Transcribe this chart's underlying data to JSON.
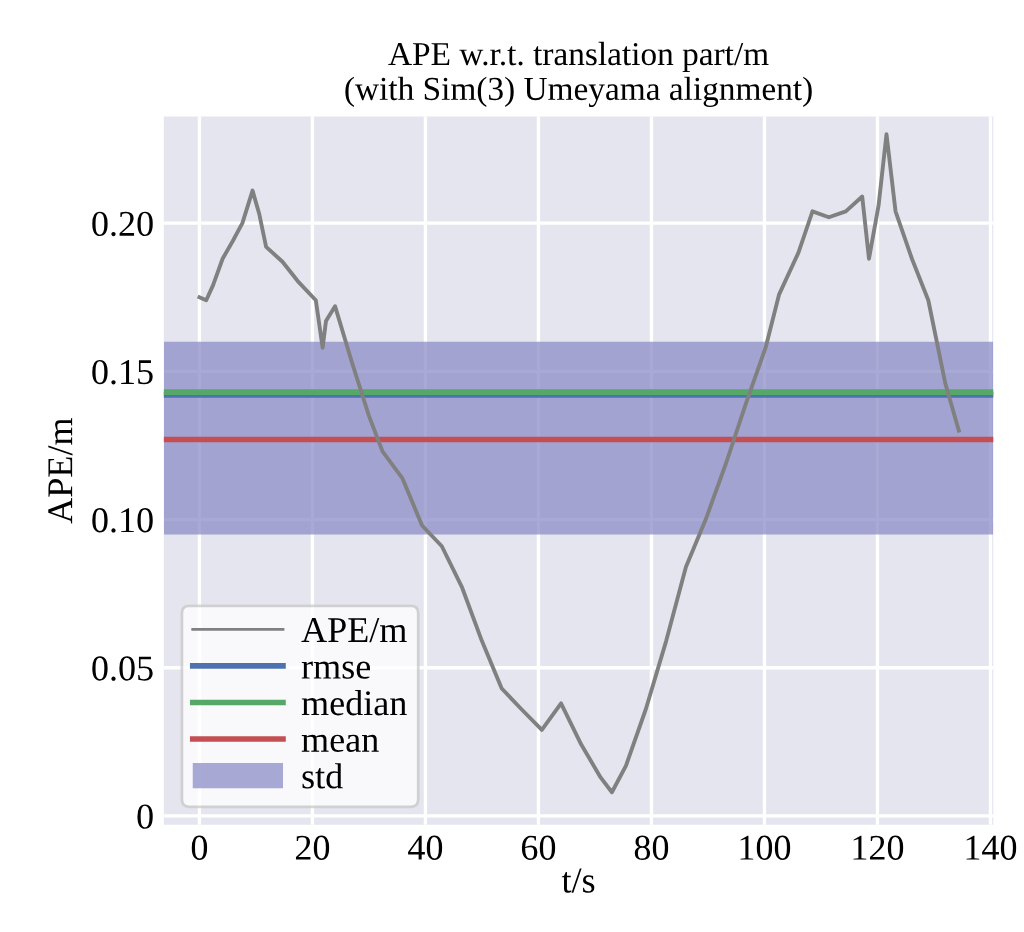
{
  "chart_data": {
    "type": "line",
    "title": "APE w.r.t. translation part/m\n(with Sim(3) Umeyama alignment)",
    "xlabel": "t/s",
    "ylabel": "APE/m",
    "series": [
      {
        "name": "APE/m",
        "color": "#808080",
        "x": [
          0,
          1.2,
          2.4,
          4.1,
          5.9,
          7.6,
          9.4,
          10.6,
          11.8,
          14.7,
          17.6,
          20.6,
          21.8,
          22.4,
          24,
          27,
          30,
          32.4,
          35.9,
          39.4,
          42.9,
          46.5,
          50,
          53.5,
          57,
          60.6,
          64,
          67.6,
          71,
          73,
          75.5,
          79,
          82.6,
          86.1,
          89.6,
          93.2,
          96.7,
          100.2,
          102.6,
          106,
          108.5,
          111.4,
          114.4,
          117.3,
          118.5,
          120.2,
          121.6,
          123.2,
          126.1,
          129,
          132,
          134.4
        ],
        "values": [
          0.175,
          0.174,
          0.179,
          0.188,
          0.194,
          0.2,
          0.211,
          0.203,
          0.192,
          0.187,
          0.18,
          0.174,
          0.158,
          0.167,
          0.172,
          0.153,
          0.135,
          0.123,
          0.114,
          0.098,
          0.091,
          0.077,
          0.059,
          0.043,
          0.036,
          0.029,
          0.038,
          0.024,
          0.013,
          0.008,
          0.017,
          0.036,
          0.059,
          0.084,
          0.1,
          0.119,
          0.139,
          0.158,
          0.176,
          0.19,
          0.204,
          0.202,
          0.204,
          0.209,
          0.188,
          0.206,
          0.23,
          0.204,
          0.188,
          0.174,
          0.146,
          0.13
        ]
      }
    ],
    "ref_lines": [
      {
        "axis": "y",
        "value": 0.142,
        "label": "rmse",
        "color": "#4c72b0"
      },
      {
        "axis": "y",
        "value": 0.143,
        "label": "median",
        "color": "#55a868"
      },
      {
        "axis": "y",
        "value": 0.127,
        "label": "mean",
        "color": "#c44e52"
      }
    ],
    "bands": [
      {
        "axis": "y",
        "from": 0.095,
        "to": 0.16,
        "label": "std",
        "color": "#8c8cc8"
      }
    ],
    "xlim": [
      -6.3,
      140.5
    ],
    "ylim": [
      -0.003,
      0.236
    ],
    "xticks": [
      0,
      20,
      40,
      60,
      80,
      100,
      120,
      140
    ],
    "yticks": [
      0,
      0.05,
      {
        "value": 0.1,
        "label": "0.10"
      },
      0.15,
      {
        "value": 0.2,
        "label": "0.20"
      }
    ],
    "grid": true,
    "legend": "bottom left",
    "marker": "none",
    "line_style": "solid"
  }
}
